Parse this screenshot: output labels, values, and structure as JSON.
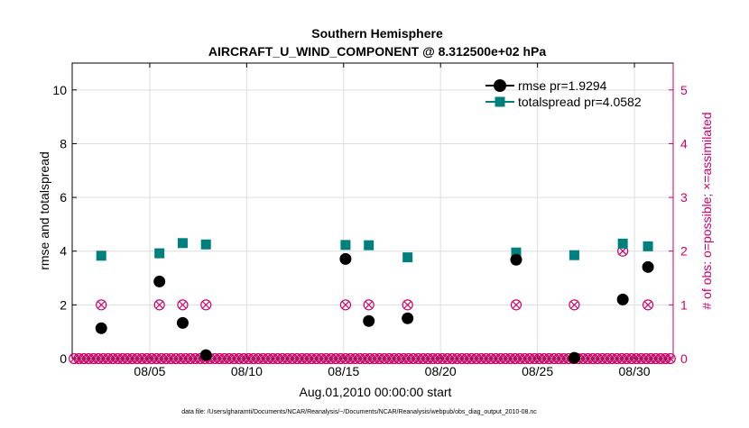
{
  "chart_data": {
    "type": "scatter",
    "title_line1": "Southern Hemisphere",
    "title_line2": "AIRCRAFT_U_WIND_COMPONENT @ 8.312500e+02 hPa",
    "xlabel": "Aug.01,2010 00:00:00 start",
    "ylabel_left": "rmse and totalspread",
    "ylabel_right": "# of obs: o=possible; ×=assimilated",
    "footer": "data file: /Users/gharamti/Documents/NCAR/Reanalysis/~/Documents/NCAR/Reanalysis/webpub/obs_diag_output_2010-08.nc",
    "xlim": [
      1,
      32
    ],
    "ylim_left": [
      0,
      11
    ],
    "ylim_right": [
      0,
      5.5
    ],
    "x_ticks": [
      5,
      10,
      15,
      20,
      25,
      30
    ],
    "x_tick_labels": [
      "08/05",
      "08/10",
      "08/15",
      "08/20",
      "08/25",
      "08/30"
    ],
    "y_ticks_left": [
      0,
      2,
      4,
      6,
      8,
      10
    ],
    "y_tick_labels_left": [
      "0",
      "2",
      "4",
      "6",
      "8",
      "10"
    ],
    "y_ticks_right": [
      0,
      1,
      2,
      3,
      4,
      5
    ],
    "y_tick_labels_right": [
      "0",
      "1",
      "2",
      "3",
      "4",
      "5"
    ],
    "grid": true,
    "legend_position": "top-right",
    "colors": {
      "rmse": "#000000",
      "totalspread": "#007f7f",
      "obs": "#cc0066",
      "grid": "#dddddd",
      "axis": "#000000"
    },
    "series": [
      {
        "name": "rmse",
        "legend": "rmse pr=1.9294",
        "points": [
          [
            2.5,
            1.13
          ],
          [
            5.5,
            2.87
          ],
          [
            6.7,
            1.33
          ],
          [
            7.9,
            0.13
          ],
          [
            15.1,
            3.71
          ],
          [
            16.3,
            1.4
          ],
          [
            18.3,
            1.5
          ],
          [
            23.9,
            3.68
          ],
          [
            26.9,
            0.03
          ],
          [
            29.4,
            2.2
          ],
          [
            30.7,
            3.41
          ]
        ]
      },
      {
        "name": "totalspread",
        "legend": "totalspread pr=4.0582",
        "points": [
          [
            2.5,
            3.83
          ],
          [
            5.5,
            3.92
          ],
          [
            6.7,
            4.3
          ],
          [
            7.9,
            4.25
          ],
          [
            15.1,
            4.23
          ],
          [
            16.3,
            4.22
          ],
          [
            18.3,
            3.77
          ],
          [
            23.9,
            3.95
          ],
          [
            26.9,
            3.85
          ],
          [
            29.4,
            4.28
          ],
          [
            30.7,
            4.18
          ]
        ]
      },
      {
        "name": "obs_possible",
        "points": [
          [
            2.5,
            1
          ],
          [
            5.5,
            1
          ],
          [
            6.7,
            1
          ],
          [
            7.9,
            1
          ],
          [
            15.1,
            1
          ],
          [
            16.3,
            1
          ],
          [
            18.3,
            1
          ],
          [
            23.9,
            1
          ],
          [
            26.9,
            1
          ],
          [
            29.4,
            2
          ],
          [
            30.7,
            1
          ]
        ]
      },
      {
        "name": "obs_assimilated",
        "points": [
          [
            2.5,
            1
          ],
          [
            5.5,
            1
          ],
          [
            6.7,
            1
          ],
          [
            7.9,
            1
          ],
          [
            15.1,
            1
          ],
          [
            16.3,
            1
          ],
          [
            18.3,
            1
          ],
          [
            23.9,
            1
          ],
          [
            26.9,
            1
          ],
          [
            29.4,
            2
          ],
          [
            30.7,
            1
          ]
        ]
      },
      {
        "name": "obs_zero",
        "x_start": 1.1,
        "x_end": 31.9,
        "x_step": 0.25,
        "value": 0
      }
    ]
  }
}
